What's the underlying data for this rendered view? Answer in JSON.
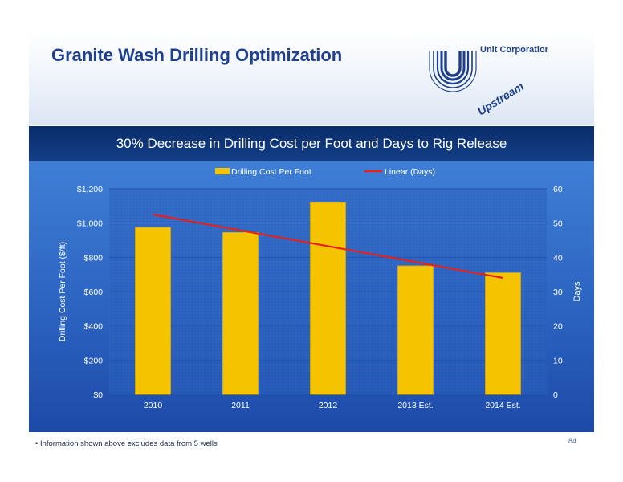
{
  "slide": {
    "title": "Granite Wash Drilling Optimization",
    "logo_text": "Unit Corporation",
    "badge_text": "Upstream",
    "footnote": "•  Information shown above excludes data from 5 wells",
    "page_number": "84"
  },
  "colors": {
    "title": "#1f3f8f",
    "bar": "#f5c400",
    "trend": "#e8201a",
    "header_bar": "#0a2d6b",
    "chart_background": "#2c63c1",
    "badge": "#1a3f8f"
  },
  "chart_data": {
    "type": "bar",
    "title": "30% Decrease in Drilling Cost per Foot and Days to Rig Release",
    "categories": [
      "2010",
      "2011",
      "2012",
      "2013 Est.",
      "2014 Est."
    ],
    "series": [
      {
        "name": "Drilling Cost Per Foot",
        "values": [
          975,
          945,
          1120,
          750,
          710
        ],
        "axis": "left"
      }
    ],
    "trendline": {
      "name": "Linear (Days)",
      "axis": "right",
      "start": 52.5,
      "end": 34
    },
    "ylabel": "Drilling Cost Per Foot ($/ft)",
    "y2label": "Days",
    "ylim": [
      0,
      1200
    ],
    "y2lim": [
      0,
      60
    ],
    "yticks": [
      "$0",
      "$200",
      "$400",
      "$600",
      "$800",
      "$1,000",
      "$1,200"
    ],
    "y2ticks": [
      "0",
      "10",
      "20",
      "30",
      "40",
      "50",
      "60"
    ],
    "legend_position": "top",
    "grid": true
  }
}
